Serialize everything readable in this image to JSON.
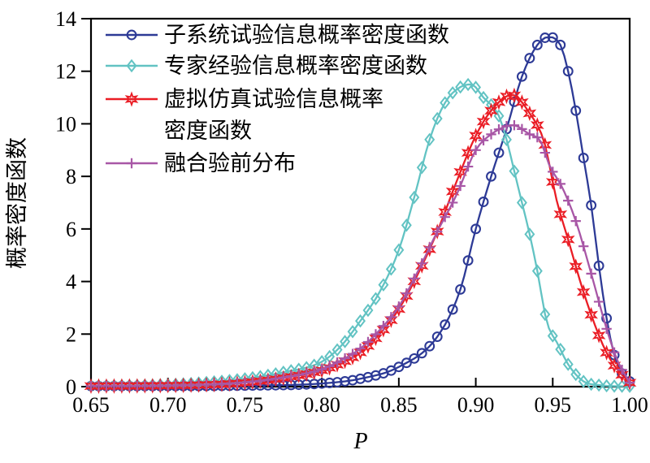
{
  "chart_data": {
    "type": "line",
    "title": "",
    "xlabel": "P",
    "ylabel": "概率密度函数",
    "xlim": [
      0.65,
      1.0
    ],
    "ylim": [
      0,
      14
    ],
    "x_tick_values": [
      0.65,
      0.7,
      0.75,
      0.8,
      0.85,
      0.9,
      0.95,
      1.0
    ],
    "y_tick_values": [
      0,
      2,
      4,
      6,
      8,
      10,
      12,
      14
    ],
    "grid": false,
    "legend_position": "top-left-inside",
    "marker_step": 0.005,
    "series": [
      {
        "name": "子系统试验信息概率密度函数",
        "legend_lines": [
          "子系统试验信息概率密度函数"
        ],
        "color": "#2D3A96",
        "marker": "circle",
        "peak": {
          "x": 0.947,
          "y": 13.3
        },
        "points": [
          [
            0.65,
            0.02
          ],
          [
            0.7,
            0.02
          ],
          [
            0.75,
            0.04
          ],
          [
            0.8,
            0.12
          ],
          [
            0.825,
            0.3
          ],
          [
            0.85,
            0.75
          ],
          [
            0.875,
            1.9
          ],
          [
            0.89,
            3.7
          ],
          [
            0.9,
            6.0
          ],
          [
            0.91,
            8.0
          ],
          [
            0.92,
            9.8
          ],
          [
            0.93,
            11.8
          ],
          [
            0.94,
            13.0
          ],
          [
            0.947,
            13.3
          ],
          [
            0.955,
            13.0
          ],
          [
            0.96,
            12.0
          ],
          [
            0.965,
            10.5
          ],
          [
            0.97,
            8.7
          ],
          [
            0.975,
            6.9
          ],
          [
            0.98,
            4.6
          ],
          [
            0.985,
            2.6
          ],
          [
            0.99,
            1.2
          ],
          [
            0.995,
            0.5
          ],
          [
            1.0,
            0.2
          ]
        ]
      },
      {
        "name": "专家经验信息概率密度函数",
        "legend_lines": [
          "专家经验信息概率密度函数"
        ],
        "color": "#62C3C3",
        "marker": "diamond",
        "peak": {
          "x": 0.897,
          "y": 11.5
        },
        "points": [
          [
            0.65,
            0.03
          ],
          [
            0.7,
            0.08
          ],
          [
            0.725,
            0.16
          ],
          [
            0.75,
            0.3
          ],
          [
            0.775,
            0.55
          ],
          [
            0.8,
            0.95
          ],
          [
            0.8125,
            1.55
          ],
          [
            0.825,
            2.5
          ],
          [
            0.8375,
            3.6
          ],
          [
            0.85,
            5.2
          ],
          [
            0.86,
            7.2
          ],
          [
            0.87,
            9.4
          ],
          [
            0.88,
            10.8
          ],
          [
            0.89,
            11.4
          ],
          [
            0.897,
            11.5
          ],
          [
            0.905,
            11.0
          ],
          [
            0.915,
            10.3
          ],
          [
            0.92,
            9.4
          ],
          [
            0.925,
            8.2
          ],
          [
            0.93,
            7.0
          ],
          [
            0.935,
            5.8
          ],
          [
            0.94,
            4.4
          ],
          [
            0.946,
            2.5
          ],
          [
            0.9535,
            1.6
          ],
          [
            0.96,
            0.85
          ],
          [
            0.97,
            0.2
          ],
          [
            0.98,
            0.06
          ],
          [
            0.99,
            0.02
          ],
          [
            1.0,
            0.01
          ]
        ]
      },
      {
        "name": "虚拟仿真试验信息概率密度函数",
        "legend_lines": [
          "虚拟仿真试验信息概率",
          "密度函数"
        ],
        "color": "#EA1D25",
        "marker": "hexagram",
        "peak": {
          "x": 0.9235,
          "y": 11.1
        },
        "points": [
          [
            0.65,
            0.02
          ],
          [
            0.7,
            0.04
          ],
          [
            0.73,
            0.08
          ],
          [
            0.75,
            0.15
          ],
          [
            0.775,
            0.33
          ],
          [
            0.8,
            0.62
          ],
          [
            0.8125,
            0.9
          ],
          [
            0.825,
            1.3
          ],
          [
            0.8375,
            2.0
          ],
          [
            0.85,
            2.95
          ],
          [
            0.8625,
            4.3
          ],
          [
            0.875,
            5.9
          ],
          [
            0.8875,
            7.8
          ],
          [
            0.9,
            9.55
          ],
          [
            0.91,
            10.5
          ],
          [
            0.9235,
            11.1
          ],
          [
            0.935,
            10.4
          ],
          [
            0.9445,
            9.3
          ],
          [
            0.9525,
            7.1
          ],
          [
            0.96,
            5.6
          ],
          [
            0.97,
            3.6
          ],
          [
            0.9825,
            1.6
          ],
          [
            0.99,
            0.8
          ],
          [
            1.0,
            0.15
          ]
        ]
      },
      {
        "name": "融合验前分布",
        "legend_lines": [
          "融合验前分布"
        ],
        "color": "#A857A6",
        "marker": "plus",
        "peak": {
          "x": 0.924,
          "y": 9.95
        },
        "points": [
          [
            0.65,
            0.02
          ],
          [
            0.7,
            0.04
          ],
          [
            0.73,
            0.09
          ],
          [
            0.75,
            0.16
          ],
          [
            0.775,
            0.35
          ],
          [
            0.8,
            0.66
          ],
          [
            0.8125,
            1.0
          ],
          [
            0.825,
            1.45
          ],
          [
            0.8375,
            2.15
          ],
          [
            0.85,
            3.05
          ],
          [
            0.8625,
            4.4
          ],
          [
            0.875,
            5.9
          ],
          [
            0.8875,
            7.3
          ],
          [
            0.9,
            9.0
          ],
          [
            0.91,
            9.6
          ],
          [
            0.924,
            9.95
          ],
          [
            0.935,
            9.6
          ],
          [
            0.942,
            9.35
          ],
          [
            0.948,
            8.4
          ],
          [
            0.956,
            7.6
          ],
          [
            0.965,
            6.3
          ],
          [
            0.975,
            4.3
          ],
          [
            0.985,
            2.2
          ],
          [
            0.992,
            1.0
          ],
          [
            1.0,
            0.15
          ]
        ]
      }
    ]
  },
  "axes": {
    "x_tick_labels": [
      "0.65",
      "0.70",
      "0.75",
      "0.80",
      "0.85",
      "0.90",
      "0.95",
      "1.00"
    ],
    "y_tick_labels": [
      "0",
      "2",
      "4",
      "6",
      "8",
      "10",
      "12",
      "14"
    ]
  },
  "colors": {
    "frame": "#000000",
    "background": "#ffffff"
  }
}
